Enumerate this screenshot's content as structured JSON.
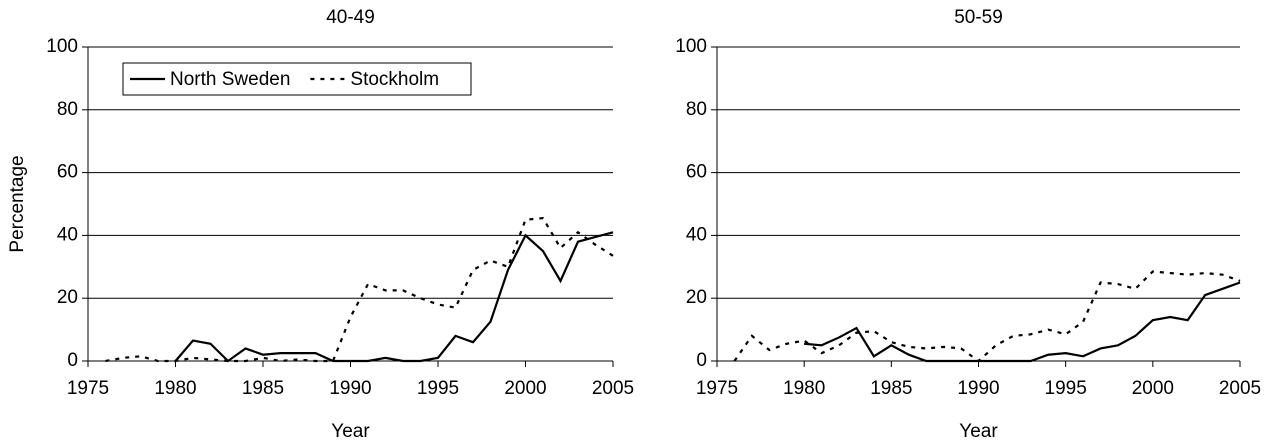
{
  "chart_data": [
    {
      "type": "line",
      "title": "40-49",
      "x_label": "Year",
      "y_label": "Percentage",
      "x": [
        1975,
        1976,
        1977,
        1978,
        1979,
        1980,
        1981,
        1982,
        1983,
        1984,
        1985,
        1986,
        1987,
        1988,
        1989,
        1990,
        1991,
        1992,
        1993,
        1994,
        1995,
        1996,
        1997,
        1998,
        1999,
        2000,
        2001,
        2002,
        2003,
        2004,
        2005
      ],
      "series": [
        {
          "name": "North Sweden",
          "color": "#000000",
          "dash": "solid",
          "values": [
            null,
            null,
            null,
            null,
            null,
            0,
            6.5,
            5.5,
            0,
            4,
            2,
            2.5,
            2.5,
            2.5,
            0,
            0,
            0,
            1,
            0,
            0,
            1,
            8,
            6,
            12.5,
            29,
            40,
            35,
            25.5,
            38,
            39.5,
            41
          ]
        },
        {
          "name": "Stockholm",
          "color": "#000000",
          "dash": "dotted",
          "values": [
            null,
            0,
            1,
            1.5,
            0,
            0,
            1,
            0.5,
            0,
            0,
            1,
            0,
            0.5,
            0,
            0,
            14,
            24.5,
            22.5,
            22.5,
            20,
            18,
            17,
            29,
            32,
            30,
            45,
            45.5,
            36,
            41,
            37,
            33.5
          ]
        }
      ],
      "xlim": [
        1975,
        2005
      ],
      "xticks": [
        1975,
        1980,
        1985,
        1990,
        1995,
        2000,
        2005
      ],
      "ylim": [
        0,
        100
      ],
      "yticks": [
        0,
        20,
        40,
        60,
        80,
        100
      ],
      "grid": true,
      "legend": "upper left"
    },
    {
      "type": "line",
      "title": "50-59",
      "x_label": "Year",
      "x": [
        1975,
        1976,
        1977,
        1978,
        1979,
        1980,
        1981,
        1982,
        1983,
        1984,
        1985,
        1986,
        1987,
        1988,
        1989,
        1990,
        1991,
        1992,
        1993,
        1994,
        1995,
        1996,
        1997,
        1998,
        1999,
        2000,
        2001,
        2002,
        2003,
        2004,
        2005
      ],
      "series": [
        {
          "color": "#000000",
          "dash": "solid",
          "values": [
            null,
            null,
            null,
            null,
            null,
            5.5,
            5,
            7.5,
            10.5,
            1.5,
            5,
            2,
            0,
            0,
            0,
            0,
            0,
            0,
            0,
            2,
            2.5,
            1.5,
            4,
            5,
            8,
            13,
            14,
            13,
            21,
            23,
            25
          ]
        },
        {
          "color": "#000000",
          "dash": "dotted",
          "values": [
            null,
            0,
            8,
            3.5,
            5.5,
            6.5,
            2.5,
            5,
            9,
            9.5,
            6,
            4.5,
            4,
            4.5,
            4,
            0,
            5,
            8,
            8.5,
            10,
            8.5,
            12.5,
            25,
            24.5,
            23,
            28.5,
            28,
            27.5,
            28,
            27.5,
            25.5
          ]
        }
      ],
      "xlim": [
        1975,
        2005
      ],
      "xticks": [
        1975,
        1980,
        1985,
        1990,
        1995,
        2000,
        2005
      ],
      "ylim": [
        0,
        100
      ],
      "yticks": [
        0,
        20,
        40,
        60,
        80,
        100
      ],
      "grid": true
    }
  ]
}
